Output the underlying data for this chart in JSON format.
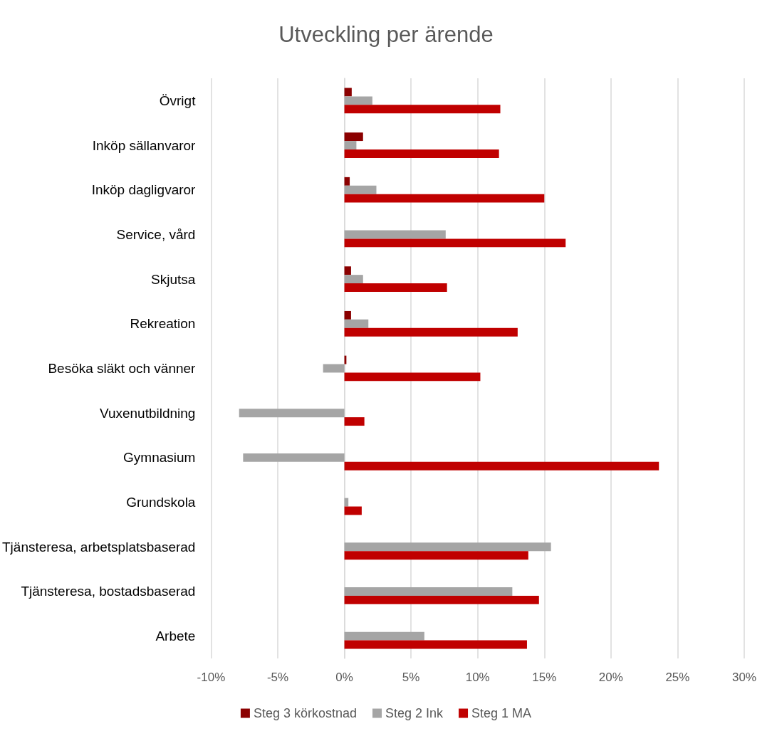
{
  "chart_data": {
    "type": "bar",
    "orientation": "horizontal",
    "title": "Utveckling per ärende",
    "categories": [
      "Övrigt",
      "Inköp sällanvaror",
      "Inköp dagligvaror",
      "Service, vård",
      "Skjutsa",
      "Rekreation",
      "Besöka släkt och vänner",
      "Vuxenutbildning",
      "Gymnasium",
      "Grundskola",
      "Tjänsteresa, arbetsplatsbaserad",
      "Tjänsteresa, bostadsbaserad",
      "Arbete"
    ],
    "series": [
      {
        "name": "Steg 3 körkostnad",
        "color": "#8b0000",
        "values": [
          0.55,
          1.4,
          0.4,
          null,
          0.5,
          0.5,
          0.15,
          null,
          null,
          null,
          null,
          null,
          null
        ]
      },
      {
        "name": "Steg 2 Ink",
        "color": "#a5a5a5",
        "values": [
          2.1,
          0.9,
          2.4,
          7.6,
          1.4,
          1.8,
          -1.6,
          -7.9,
          -7.6,
          0.3,
          15.5,
          12.6,
          6.0
        ]
      },
      {
        "name": "Steg 1 MA",
        "color": "#c00000",
        "values": [
          11.7,
          11.6,
          15.0,
          16.6,
          7.7,
          13.0,
          10.2,
          1.5,
          23.6,
          1.3,
          13.8,
          14.6,
          13.7
        ]
      }
    ],
    "xlim": [
      -10,
      30
    ],
    "xticks": [
      {
        "value": -10,
        "label": "-10%"
      },
      {
        "value": -5,
        "label": "-5%"
      },
      {
        "value": 0,
        "label": "0%"
      },
      {
        "value": 5,
        "label": "5%"
      },
      {
        "value": 10,
        "label": "10%"
      },
      {
        "value": 15,
        "label": "15%"
      },
      {
        "value": 20,
        "label": "20%"
      },
      {
        "value": 25,
        "label": "25%"
      },
      {
        "value": 30,
        "label": "30%"
      }
    ],
    "grid": "x",
    "legend": "bottom"
  }
}
